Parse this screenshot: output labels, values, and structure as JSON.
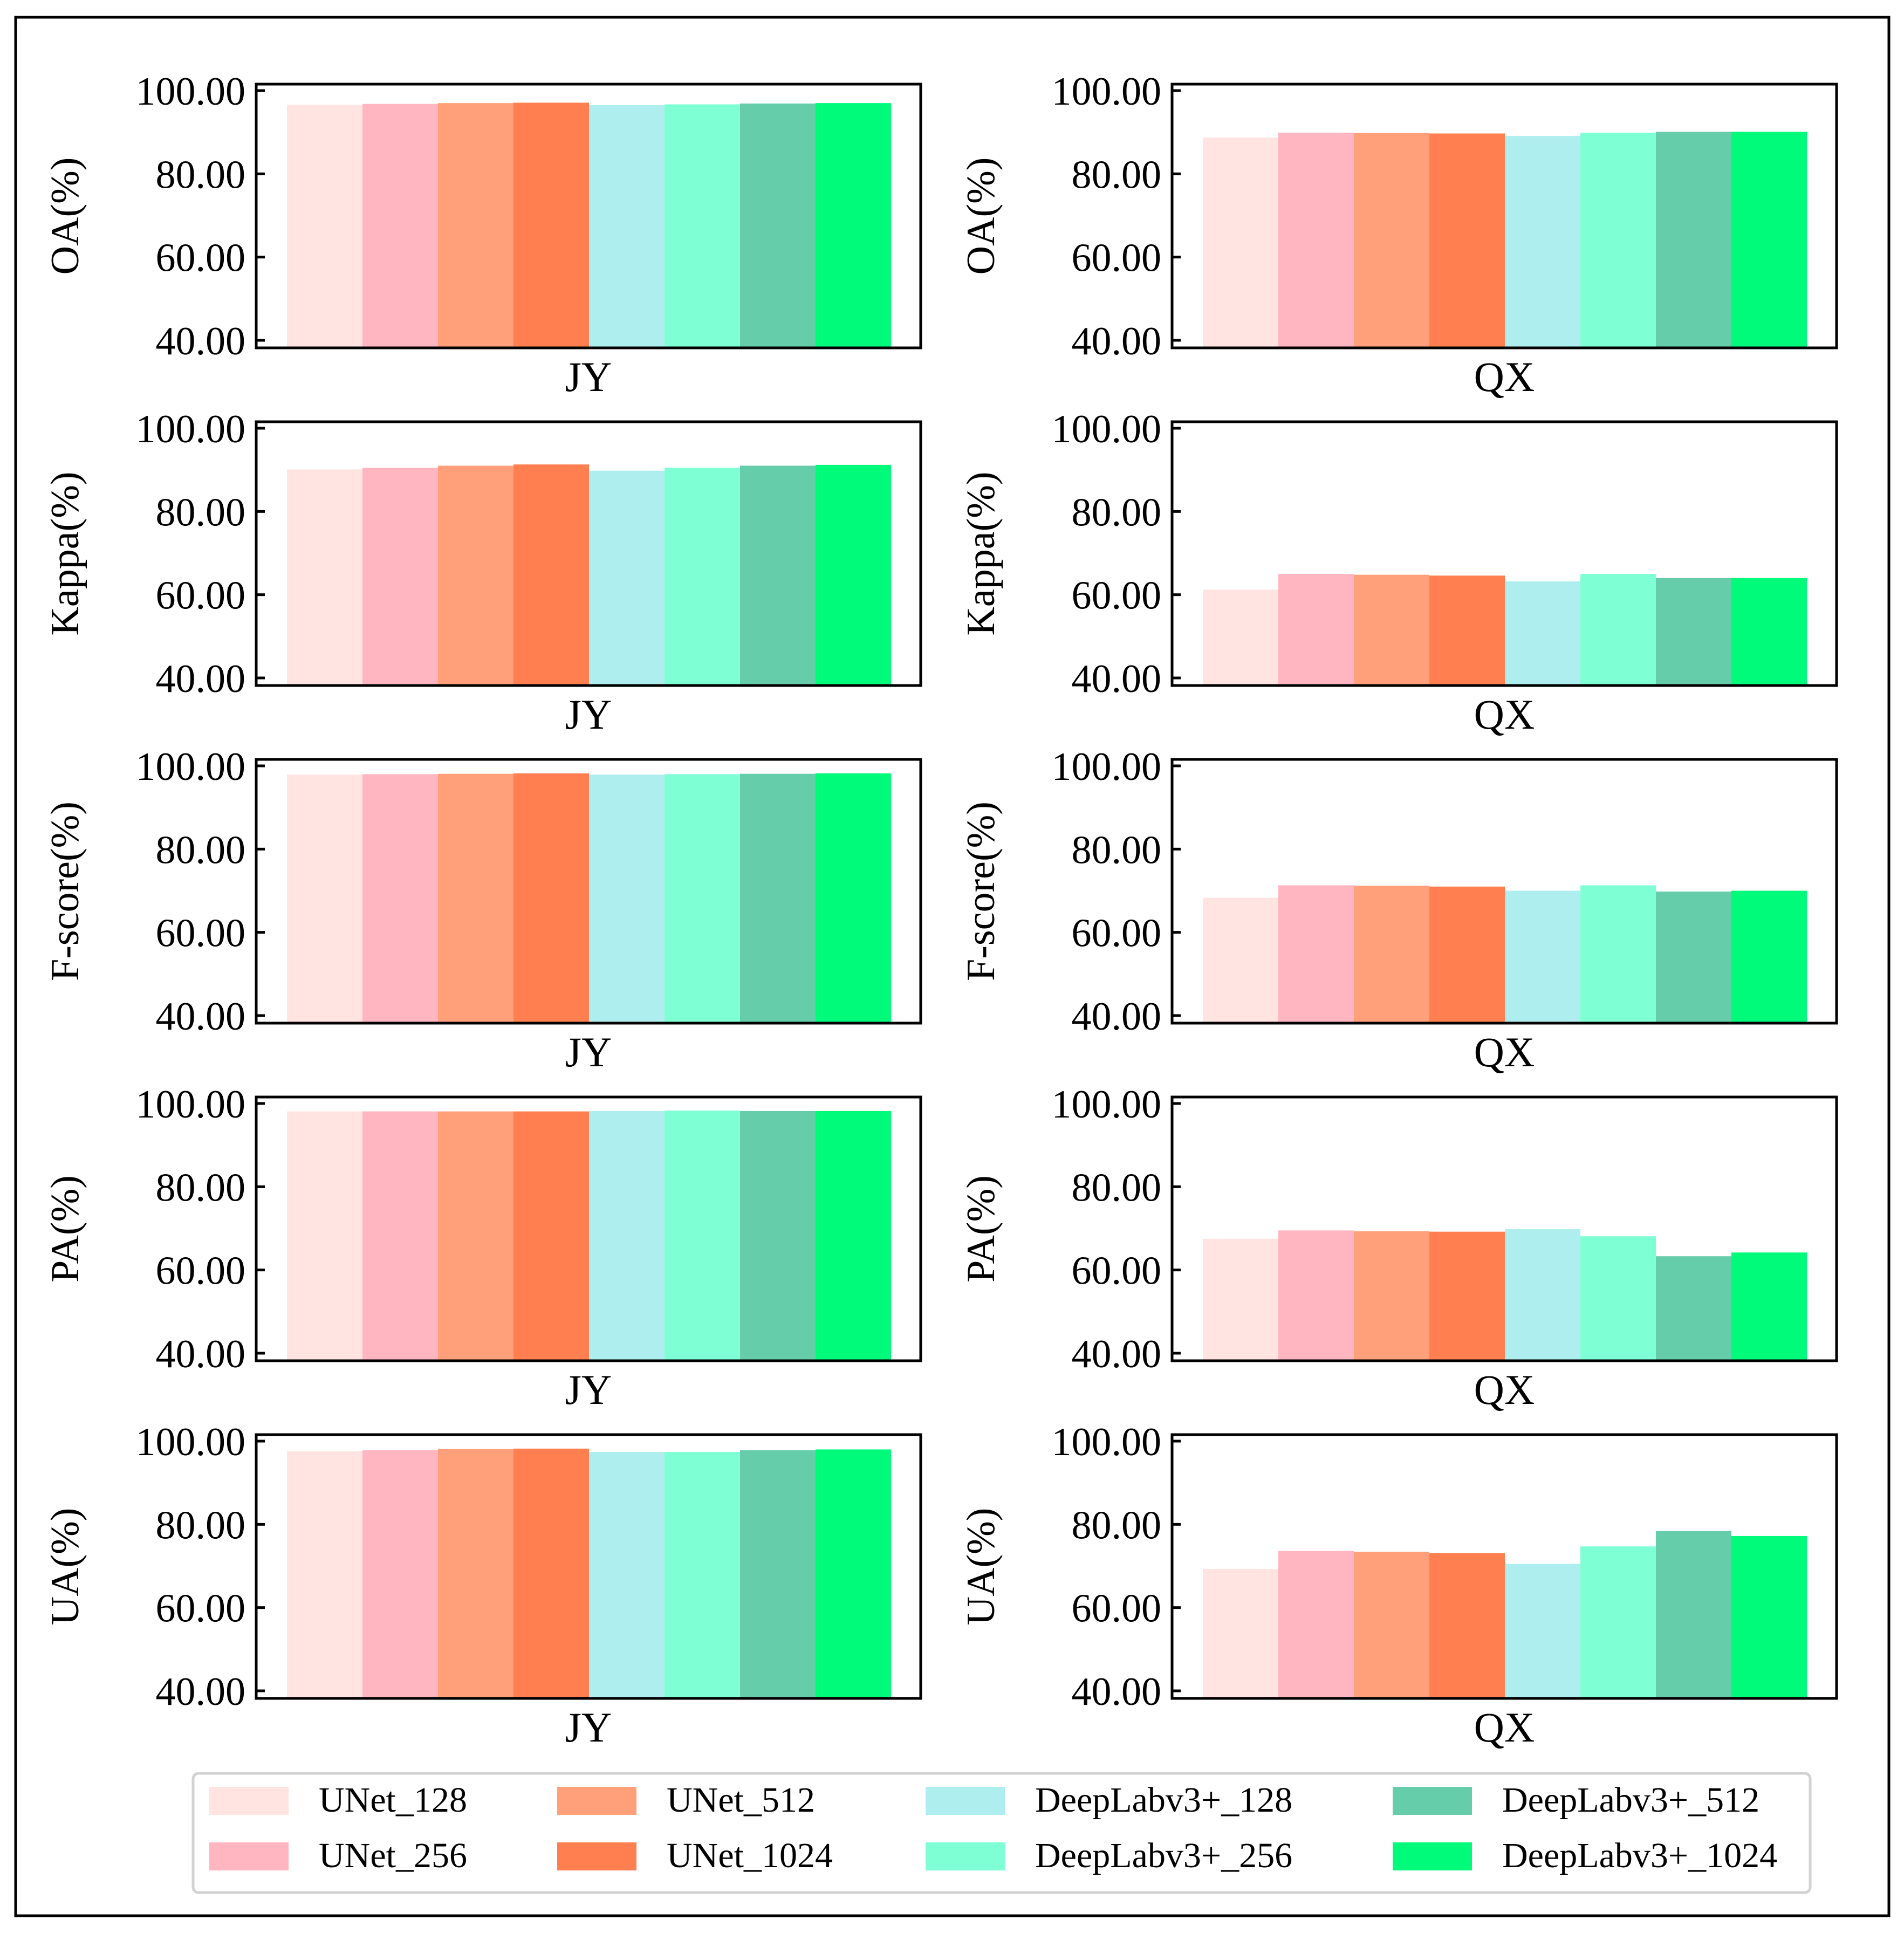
{
  "series": [
    {
      "name": "UNet_128",
      "color": "#FFE4E1"
    },
    {
      "name": "UNet_256",
      "color": "#FFB6C1"
    },
    {
      "name": "UNet_512",
      "color": "#FFA07A"
    },
    {
      "name": "UNet_1024",
      "color": "#FF7F50"
    },
    {
      "name": "DeepLabv3+_128",
      "color": "#AFEEEE"
    },
    {
      "name": "DeepLabv3+_256",
      "color": "#7FFFD4"
    },
    {
      "name": "DeepLabv3+_512",
      "color": "#66CDAA"
    },
    {
      "name": "DeepLabv3+_1024",
      "color": "#00FA7A"
    }
  ],
  "chart_data": [
    {
      "type": "bar",
      "metric": "OA",
      "ylabel": "OA(%)",
      "xlabel": "JY",
      "ylim": [
        40,
        100
      ],
      "yticks": [
        "100.00",
        "80.00",
        "60.00",
        "40.00"
      ],
      "values": [
        96.6,
        96.8,
        97.0,
        97.1,
        96.5,
        96.7,
        96.9,
        97.0
      ]
    },
    {
      "type": "bar",
      "metric": "OA",
      "ylabel": "OA(%)",
      "xlabel": "QX",
      "ylim": [
        40,
        100
      ],
      "yticks": [
        "100.00",
        "80.00",
        "60.00",
        "40.00"
      ],
      "values": [
        88.7,
        89.9,
        89.8,
        89.7,
        89.1,
        89.9,
        90.1,
        90.1
      ]
    },
    {
      "type": "bar",
      "metric": "Kappa",
      "ylabel": "Kappa(%)",
      "xlabel": "JY",
      "ylim": [
        40,
        100
      ],
      "yticks": [
        "100.00",
        "80.00",
        "60.00",
        "40.00"
      ],
      "values": [
        90.1,
        90.5,
        91.0,
        91.3,
        89.8,
        90.5,
        91.0,
        91.2
      ]
    },
    {
      "type": "bar",
      "metric": "Kappa",
      "ylabel": "Kappa(%)",
      "xlabel": "QX",
      "ylim": [
        40,
        100
      ],
      "yticks": [
        "100.00",
        "80.00",
        "60.00",
        "40.00"
      ],
      "values": [
        61.2,
        65.0,
        64.8,
        64.6,
        63.2,
        65.0,
        64.0,
        64.0
      ]
    },
    {
      "type": "bar",
      "metric": "F-score",
      "ylabel": "F-score(%)",
      "xlabel": "JY",
      "ylim": [
        40,
        100
      ],
      "yticks": [
        "100.00",
        "80.00",
        "60.00",
        "40.00"
      ],
      "values": [
        97.9,
        98.0,
        98.1,
        98.2,
        97.9,
        98.0,
        98.1,
        98.2
      ]
    },
    {
      "type": "bar",
      "metric": "F-score",
      "ylabel": "F-score(%)",
      "xlabel": "QX",
      "ylim": [
        40,
        100
      ],
      "yticks": [
        "100.00",
        "80.00",
        "60.00",
        "40.00"
      ],
      "values": [
        68.3,
        71.3,
        71.2,
        71.0,
        70.0,
        71.3,
        69.8,
        70.0
      ]
    },
    {
      "type": "bar",
      "metric": "PA",
      "ylabel": "PA(%)",
      "xlabel": "JY",
      "ylim": [
        40,
        100
      ],
      "yticks": [
        "100.00",
        "80.00",
        "60.00",
        "40.00"
      ],
      "values": [
        98.1,
        98.1,
        98.1,
        98.1,
        98.2,
        98.3,
        98.2,
        98.2
      ]
    },
    {
      "type": "bar",
      "metric": "PA",
      "ylabel": "PA(%)",
      "xlabel": "QX",
      "ylim": [
        40,
        100
      ],
      "yticks": [
        "100.00",
        "80.00",
        "60.00",
        "40.00"
      ],
      "values": [
        67.5,
        69.5,
        69.3,
        69.2,
        69.8,
        68.1,
        63.3,
        64.2
      ]
    },
    {
      "type": "bar",
      "metric": "UA",
      "ylabel": "UA(%)",
      "xlabel": "JY",
      "ylim": [
        40,
        100
      ],
      "yticks": [
        "100.00",
        "80.00",
        "60.00",
        "40.00"
      ],
      "values": [
        97.6,
        97.8,
        98.1,
        98.2,
        97.4,
        97.4,
        97.8,
        98.0
      ]
    },
    {
      "type": "bar",
      "metric": "UA",
      "ylabel": "UA(%)",
      "xlabel": "QX",
      "ylim": [
        40,
        100
      ],
      "yticks": [
        "100.00",
        "80.00",
        "60.00",
        "40.00"
      ],
      "values": [
        69.3,
        73.6,
        73.4,
        73.1,
        70.5,
        74.7,
        78.4,
        77.2
      ]
    }
  ]
}
